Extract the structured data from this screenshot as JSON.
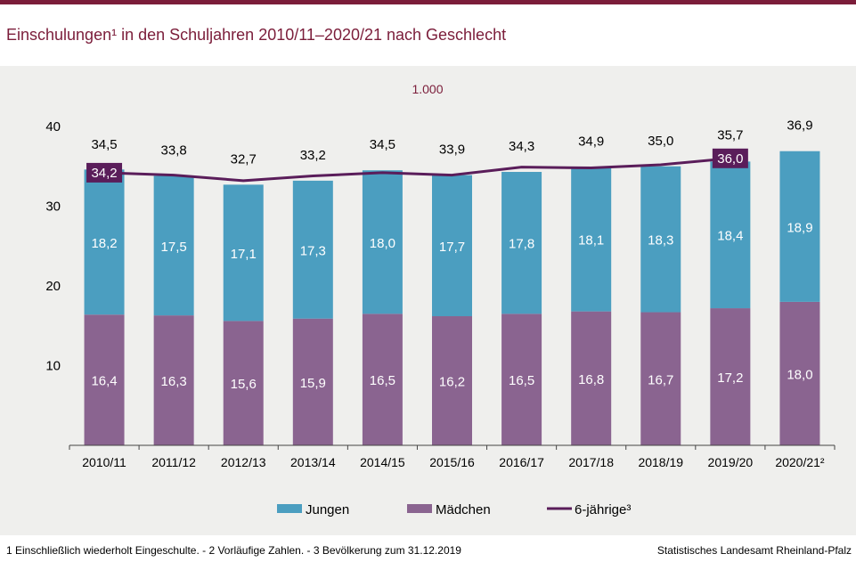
{
  "title": "Einschulungen¹ in den Schuljahren 2010/11–2020/21 nach Geschlecht",
  "unit_label": "1.000",
  "footnote": "1 Einschließlich wiederholt  Eingeschulte.  - 2 Vorläufige  Zahlen.  - 3 Bevölkerung  zum 31.12.2019",
  "source": "Statistisches Landesamt Rheinland-Pfalz",
  "colors": {
    "jungen": "#4b9ec0",
    "maedchen": "#8a6490",
    "line": "#5a1d5a",
    "title": "#7b1d3a",
    "panel": "#efefed"
  },
  "chart_data": {
    "type": "bar",
    "stacked": true,
    "categories": [
      "2010/11",
      "2011/12",
      "2012/13",
      "2013/14",
      "2014/15",
      "2015/16",
      "2016/17",
      "2017/18",
      "2018/19",
      "2019/20",
      "2020/21²"
    ],
    "yticks": [
      10,
      20,
      30,
      40
    ],
    "ylim": [
      0,
      40
    ],
    "series": [
      {
        "name": "Mädchen",
        "values": [
          16.4,
          16.3,
          15.6,
          15.9,
          16.5,
          16.2,
          16.5,
          16.8,
          16.7,
          17.2,
          18.0
        ],
        "labels": [
          "16,4",
          "16,3",
          "15,6",
          "15,9",
          "16,5",
          "16,2",
          "16,5",
          "16,8",
          "16,7",
          "17,2",
          "18,0"
        ]
      },
      {
        "name": "Jungen",
        "values": [
          18.2,
          17.5,
          17.1,
          17.3,
          18.0,
          17.7,
          17.8,
          18.1,
          18.3,
          18.4,
          18.9
        ],
        "labels": [
          "18,2",
          "17,5",
          "17,1",
          "17,3",
          "18,0",
          "17,7",
          "17,8",
          "18,1",
          "18,3",
          "18,4",
          "18,9"
        ]
      }
    ],
    "totals": [
      34.5,
      33.8,
      32.7,
      33.2,
      34.5,
      33.9,
      34.3,
      34.9,
      35.0,
      35.7,
      36.9
    ],
    "total_labels": [
      "34,5",
      "33,8",
      "32,7",
      "33,2",
      "34,5",
      "33,9",
      "34,3",
      "34,9",
      "35,0",
      "35,7",
      "36,9"
    ],
    "line": {
      "name": "6-jährige³",
      "values": [
        34.2,
        null,
        null,
        null,
        null,
        null,
        null,
        null,
        null,
        36.0,
        null
      ],
      "labels": [
        "34,2",
        null,
        null,
        null,
        null,
        null,
        null,
        null,
        null,
        "36,0",
        null
      ]
    },
    "legend": [
      "Jungen",
      "Mädchen",
      "6-jährige³"
    ],
    "legend_position": "bottom",
    "grid": false
  }
}
